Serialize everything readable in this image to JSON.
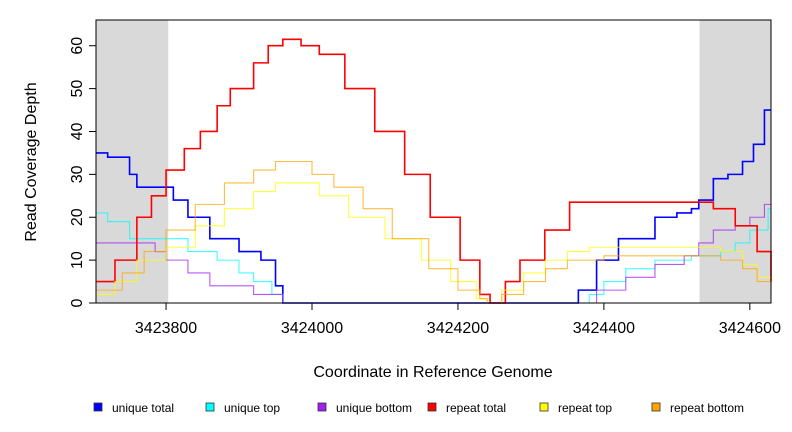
{
  "chart_data": {
    "type": "line",
    "step": true,
    "title": "",
    "xlabel": "Coordinate in Reference Genome",
    "ylabel": "Read Coverage Depth",
    "xlim": [
      3423704,
      3424629
    ],
    "ylim": [
      0,
      66
    ],
    "xticks": [
      3423800,
      3424000,
      3424200,
      3424400,
      3424600
    ],
    "xtick_labels": [
      "3423800",
      "3424000",
      "3424200",
      "3424400",
      "3424600"
    ],
    "yticks": [
      0,
      10,
      20,
      30,
      40,
      50,
      60
    ],
    "ytick_labels": [
      "0",
      "10",
      "20",
      "30",
      "40",
      "50",
      "60"
    ],
    "shaded_regions": [
      [
        3423704,
        3423803
      ],
      [
        3424531,
        3424629
      ]
    ],
    "legend_position": "bottom",
    "series": [
      {
        "name": "unique total",
        "color": "#0000ff",
        "x": [
          3423704,
          3423720,
          3423750,
          3423760,
          3423810,
          3423830,
          3423860,
          3423900,
          3423930,
          3423950,
          3423960,
          3424360,
          3424365,
          3424390,
          3424420,
          3424470,
          3424500,
          3424520,
          3424530,
          3424550,
          3424570,
          3424590,
          3424605,
          3424620,
          3424629
        ],
        "y": [
          35,
          34,
          30,
          27,
          24,
          20,
          15,
          12,
          10,
          4,
          0,
          0,
          3,
          10,
          15,
          20,
          21,
          22,
          24,
          29,
          30,
          33,
          37,
          45,
          45
        ]
      },
      {
        "name": "unique top",
        "color": "#00ffff",
        "x": [
          3423704,
          3423720,
          3423750,
          3423830,
          3423870,
          3423900,
          3423920,
          3423945,
          3423960,
          3424365,
          3424380,
          3424400,
          3424430,
          3424470,
          3424520,
          3424560,
          3424580,
          3424600,
          3424625,
          3424629
        ],
        "y": [
          21,
          19,
          15,
          12,
          10,
          7,
          5,
          2,
          0,
          0,
          2,
          5,
          8,
          10,
          11,
          12,
          14,
          17,
          22,
          22
        ]
      },
      {
        "name": "unique bottom",
        "color": "#a020f0",
        "x": [
          3423704,
          3423770,
          3423785,
          3423800,
          3423830,
          3423860,
          3423920,
          3423960,
          3424375,
          3424390,
          3424430,
          3424470,
          3424510,
          3424530,
          3424550,
          3424580,
          3424600,
          3424620,
          3424629
        ],
        "y": [
          14,
          14,
          12,
          10,
          7,
          4,
          2,
          0,
          0,
          3,
          6,
          9,
          11,
          14,
          17,
          18,
          20,
          23,
          23
        ]
      },
      {
        "name": "repeat total",
        "color": "#ff0000",
        "x": [
          3423704,
          3423730,
          3423760,
          3423780,
          3423800,
          3423825,
          3423847,
          3423870,
          3423888,
          3423920,
          3423940,
          3423960,
          3423985,
          3424010,
          3424045,
          3424086,
          3424127,
          3424162,
          3424203,
          3424230,
          3424244,
          3424265,
          3424285,
          3424319,
          3424353,
          3424531,
          3424550,
          3424580,
          3424610,
          3424629
        ],
        "y": [
          5,
          10,
          20,
          25,
          31,
          36,
          40,
          46,
          50,
          56,
          60,
          61.5,
          60,
          58,
          50,
          40,
          30,
          20,
          10,
          2,
          0,
          5,
          10,
          17,
          23.5,
          23.5,
          22,
          18,
          12,
          5
        ]
      },
      {
        "name": "repeat top",
        "color": "#ffff00",
        "x": [
          3423704,
          3423730,
          3423760,
          3423800,
          3423840,
          3423880,
          3423920,
          3423950,
          3423970,
          3424010,
          3424050,
          3424100,
          3424150,
          3424190,
          3424225,
          3424240,
          3424260,
          3424290,
          3424320,
          3424350,
          3424380,
          3424530,
          3424560,
          3424590,
          3424610,
          3424629
        ],
        "y": [
          2,
          5,
          10,
          13,
          18,
          22,
          26,
          28,
          28,
          25,
          20,
          15,
          10,
          5,
          1,
          0,
          3,
          7,
          10,
          12,
          13,
          13,
          12,
          9,
          6,
          3
        ]
      },
      {
        "name": "repeat bottom",
        "color": "#ffa500",
        "x": [
          3423704,
          3423740,
          3423770,
          3423800,
          3423840,
          3423880,
          3423920,
          3423950,
          3423970,
          3424000,
          3424030,
          3424070,
          3424110,
          3424160,
          3424200,
          3424230,
          3424240,
          3424260,
          3424290,
          3424320,
          3424350,
          3424400,
          3424530,
          3424560,
          3424590,
          3424610,
          3424629
        ],
        "y": [
          3,
          7,
          12,
          17,
          23,
          28,
          31,
          33,
          33,
          30,
          27,
          22,
          15,
          8,
          3,
          1,
          0,
          2,
          5,
          8,
          10,
          11,
          11,
          10,
          8,
          5,
          3
        ]
      }
    ]
  }
}
